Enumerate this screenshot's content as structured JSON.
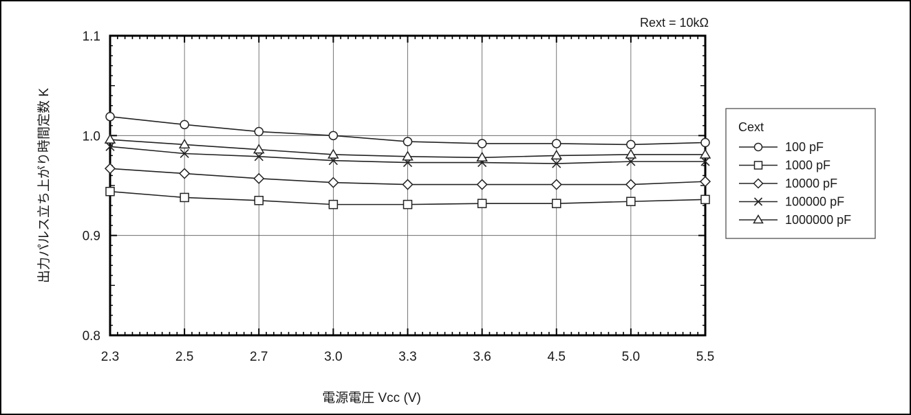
{
  "chart_data": {
    "type": "line",
    "annotation": "Rext = 10kΩ",
    "xlabel": "電源電圧 Vcc (V)",
    "ylabel": "出力パルス立ち上がり時間定数 K",
    "categories": [
      "2.3",
      "2.5",
      "2.7",
      "3.0",
      "3.3",
      "3.6",
      "4.5",
      "5.0",
      "5.5"
    ],
    "ylim": [
      0.8,
      1.1
    ],
    "yticks": [
      "0.8",
      "0.9",
      "1.0",
      "1.1"
    ],
    "grid": true,
    "legend": {
      "title": "Cext",
      "position": "right"
    },
    "series": [
      {
        "name": "100 pF",
        "marker": "circle",
        "values": [
          1.019,
          1.011,
          1.004,
          1.0,
          0.994,
          0.992,
          0.992,
          0.991,
          0.993
        ]
      },
      {
        "name": "1000 pF",
        "marker": "square",
        "values": [
          0.944,
          0.938,
          0.935,
          0.931,
          0.931,
          0.932,
          0.932,
          0.934,
          0.936
        ]
      },
      {
        "name": "10000 pF",
        "marker": "diamond",
        "values": [
          0.967,
          0.962,
          0.957,
          0.953,
          0.951,
          0.951,
          0.951,
          0.951,
          0.954
        ]
      },
      {
        "name": "100000 pF",
        "marker": "x",
        "values": [
          0.989,
          0.982,
          0.979,
          0.975,
          0.973,
          0.973,
          0.972,
          0.974,
          0.974
        ]
      },
      {
        "name": "1000000 pF",
        "marker": "triangle",
        "values": [
          0.996,
          0.991,
          0.986,
          0.981,
          0.979,
          0.978,
          0.98,
          0.981,
          0.981
        ]
      }
    ]
  }
}
